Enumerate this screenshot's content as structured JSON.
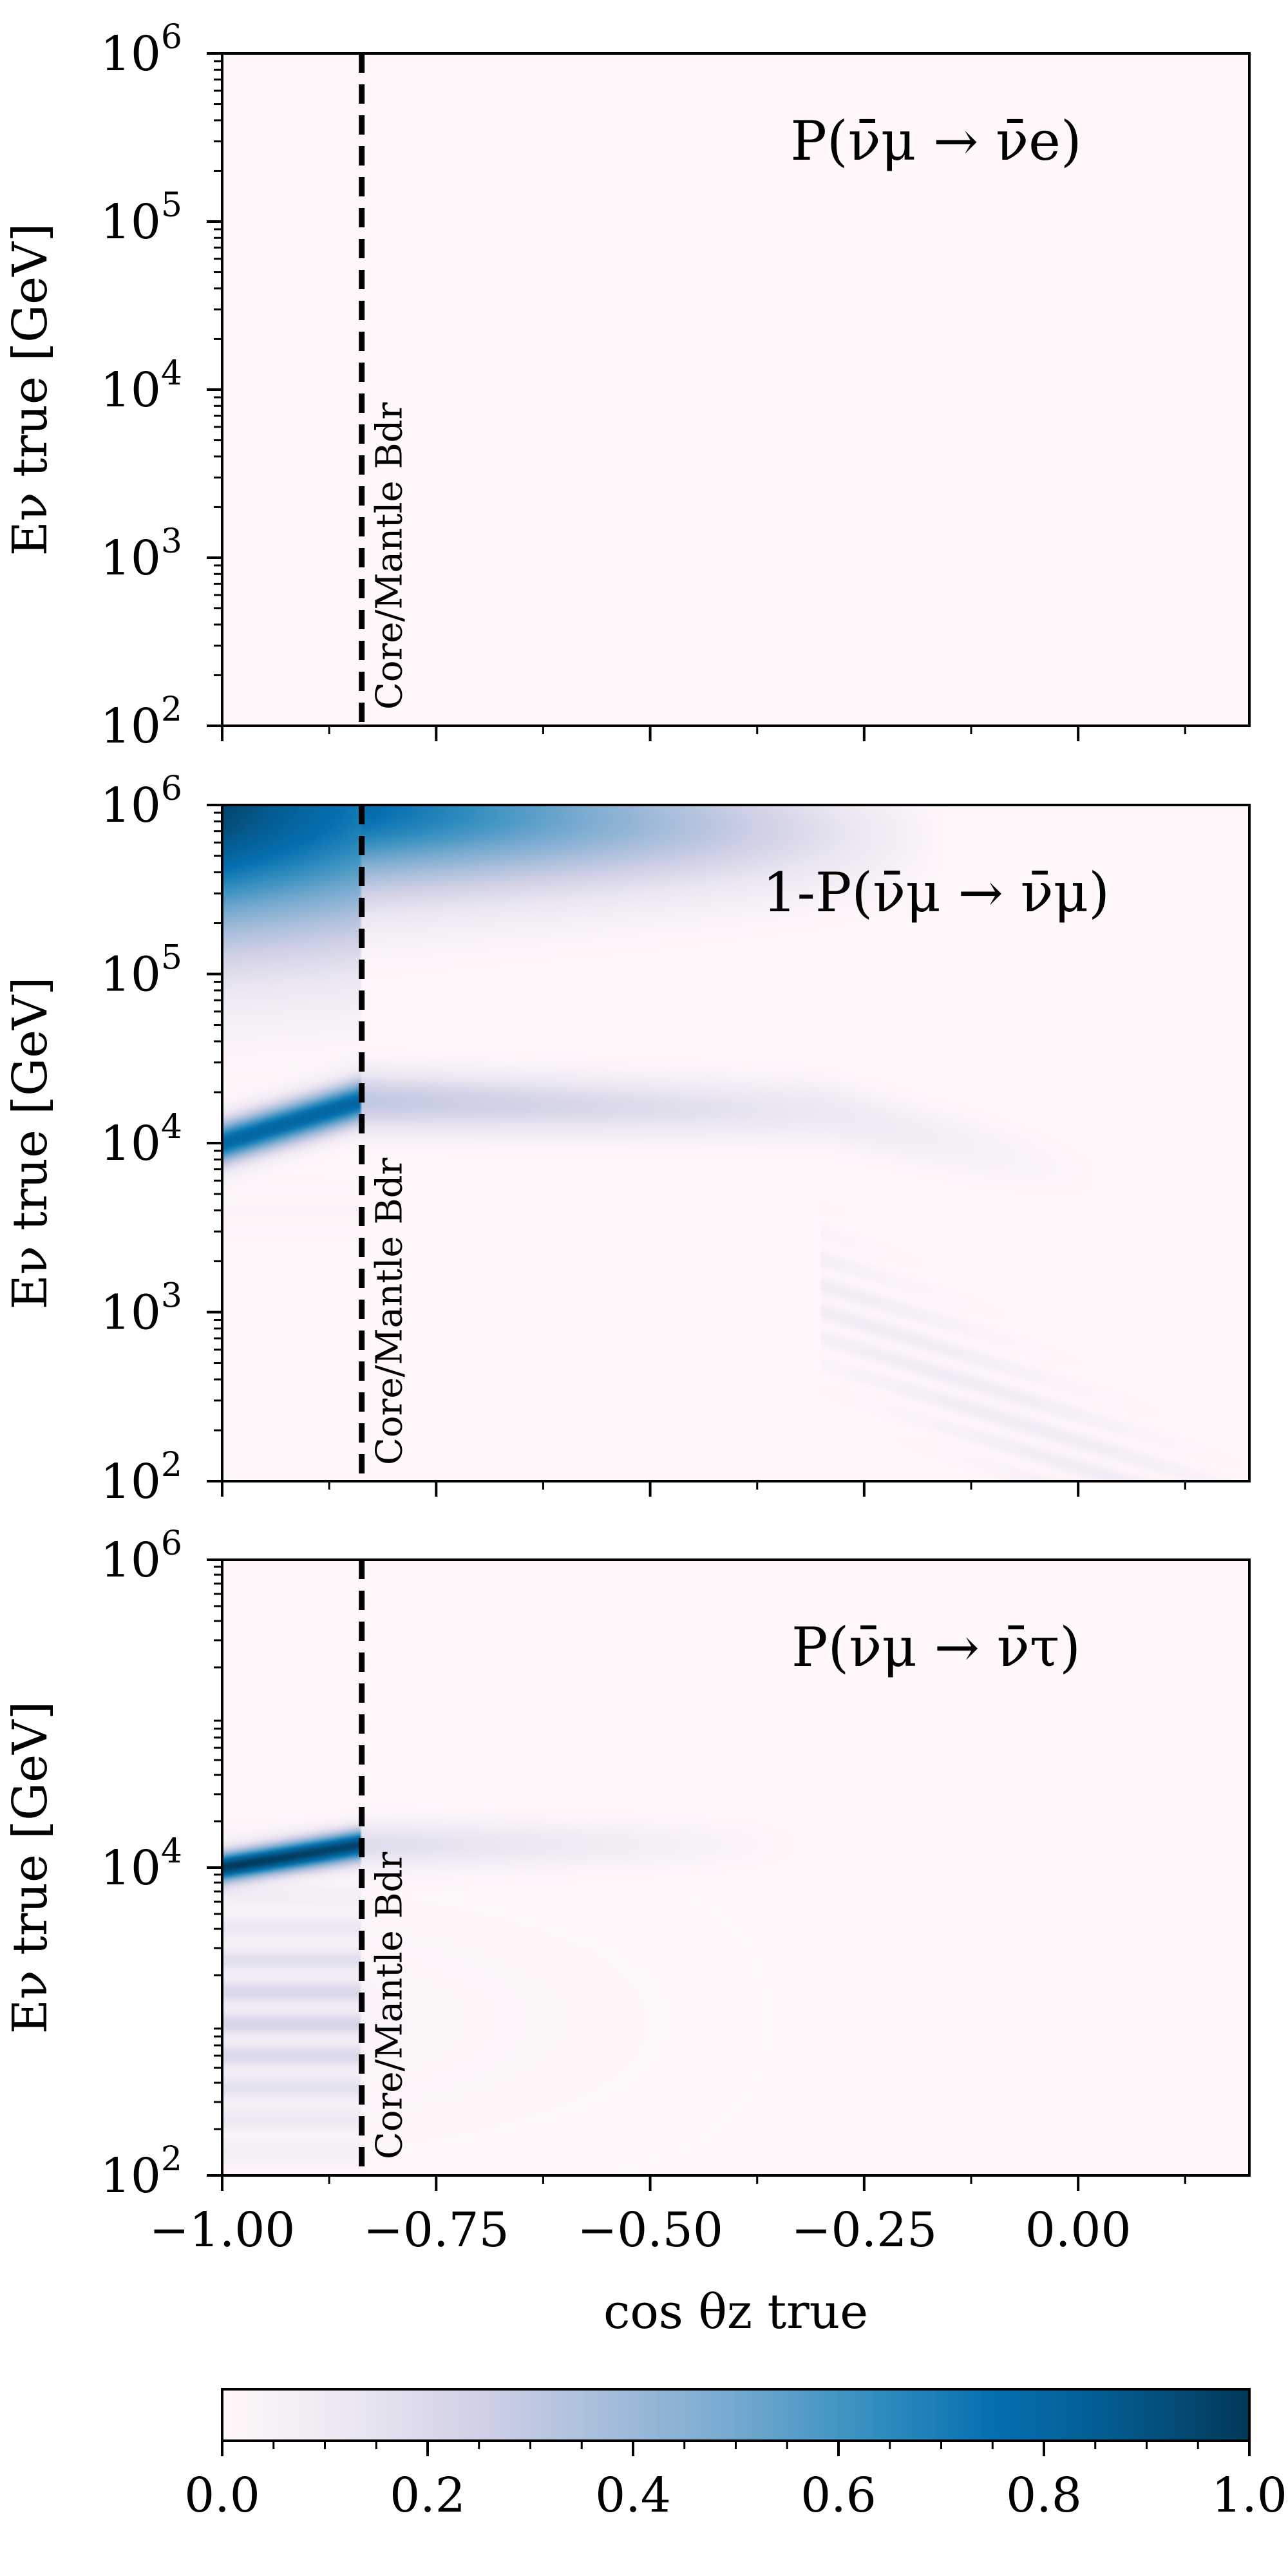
{
  "chart_data": {
    "type": "heatmap",
    "colormap": "PuBu",
    "panels": [
      {
        "title": "P(ν̄μ → ν̄e)",
        "ylabel": "Eν true [GeV]",
        "xlim": [
          -1.0,
          0.2
        ],
        "ylim_log10": [
          2,
          6
        ],
        "yscale": "log",
        "yticks": [
          {
            "exp": 2,
            "label": "10",
            "sup": "2"
          },
          {
            "exp": 3,
            "label": "10",
            "sup": "3"
          },
          {
            "exp": 4,
            "label": "10",
            "sup": "4"
          },
          {
            "exp": 5,
            "label": "10",
            "sup": "5"
          },
          {
            "exp": 6,
            "label": "10",
            "sup": "6"
          }
        ],
        "boundary": {
          "x": -0.837,
          "label": "Core/Mantle Bdr"
        },
        "features": []
      },
      {
        "title": "1-P(ν̄μ → ν̄μ)",
        "ylabel": "Eν true [GeV]",
        "xlim": [
          -1.0,
          0.2
        ],
        "ylim_log10": [
          2,
          6
        ],
        "yscale": "log",
        "yticks": [
          {
            "exp": 2,
            "label": "10",
            "sup": "2"
          },
          {
            "exp": 3,
            "label": "10",
            "sup": "3"
          },
          {
            "exp": 4,
            "label": "10",
            "sup": "4"
          },
          {
            "exp": 5,
            "label": "10",
            "sup": "5"
          },
          {
            "exp": 6,
            "label": "10",
            "sup": "6"
          }
        ],
        "boundary": {
          "x": -0.837,
          "label": "Core/Mantle Bdr"
        },
        "features": [
          {
            "desc": "high-energy band",
            "x0": -1.0,
            "x1": -0.16,
            "peak_log10E": 6.0,
            "value_max": 0.95
          },
          {
            "desc": "core resonance",
            "x0": -1.0,
            "x1": -0.837,
            "peak_log10E": 4.05,
            "value_max": 0.8
          },
          {
            "desc": "mantle resonance",
            "x0": -0.837,
            "x1": 0.2,
            "peak_log10E": 4.25,
            "value_max": 0.3
          },
          {
            "desc": "low-energy oscillation",
            "x0": -0.3,
            "x1": 0.2,
            "peak_log10E": 2.8,
            "value_max": 0.1
          }
        ]
      },
      {
        "title": "P(ν̄μ → ν̄τ)",
        "ylabel": "Eν true [GeV]",
        "xlim": [
          -1.0,
          0.2
        ],
        "ylim_log10": [
          2,
          6
        ],
        "yscale": "log",
        "yticks": [
          {
            "exp": 2,
            "label": "10",
            "sup": "2"
          },
          {
            "exp": 4,
            "label": "10",
            "sup": "4"
          },
          {
            "exp": 6,
            "label": "10",
            "sup": "6"
          }
        ],
        "boundary": {
          "x": -0.837,
          "label": "Core/Mantle Bdr"
        },
        "features": [
          {
            "desc": "core resonance",
            "x0": -1.0,
            "x1": -0.837,
            "peak_log10E": 4.05,
            "value_max": 0.95
          },
          {
            "desc": "mantle tail",
            "x0": -0.837,
            "x1": -0.3,
            "peak_log10E": 4.15,
            "value_max": 0.15
          },
          {
            "desc": "low-energy core haze",
            "x0": -1.0,
            "x1": -0.8,
            "peak_log10E": 3.0,
            "value_max": 0.25
          }
        ]
      }
    ],
    "xlabel": "cos θz true",
    "xticks": [
      -1.0,
      -0.75,
      -0.5,
      -0.25,
      0.0
    ],
    "xtick_labels": [
      "−1.00",
      "−0.75",
      "−0.50",
      "−0.25",
      "0.00"
    ],
    "colorbar": {
      "range": [
        0.0,
        1.0
      ],
      "ticks": [
        0.0,
        0.2,
        0.4,
        0.6,
        0.8,
        1.0
      ],
      "tick_labels": [
        "0.0",
        "0.2",
        "0.4",
        "0.6",
        "0.8",
        "1.0"
      ],
      "orientation": "horizontal"
    }
  }
}
